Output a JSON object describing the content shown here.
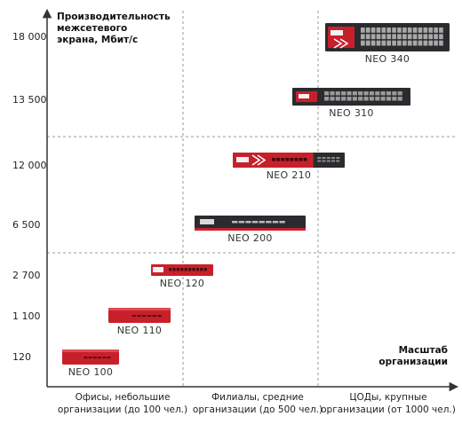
{
  "chart_data": {
    "type": "scatter",
    "ylabel": "Производительность межсетевого экрана,  Мбит/с",
    "xlabel": "Масштаб организации",
    "y_ticks": [
      "18 000",
      "13 500",
      "12 000",
      "6 500",
      "2 700",
      "1 100",
      "120"
    ],
    "categories": [
      "Офисы, небольшие организации (до 100 чел.)",
      "Филиалы, средние организации (до 500 чел.)",
      "ЦОДы, крупные организации (от 1000 чел.)"
    ],
    "grid": true,
    "points": [
      {
        "name": "NEO 100",
        "category": "Офисы, небольшие организации (до 100 чел.)",
        "y": "120",
        "style": "red-desktop"
      },
      {
        "name": "NEO 110",
        "category": "Офисы, небольшие организации (до 100 чел.)",
        "y": "1 100",
        "style": "red-desktop"
      },
      {
        "name": "NEO 120",
        "category": "Офисы, небольшие организации (до 100 чел.)",
        "y": "2 700",
        "style": "red-rack"
      },
      {
        "name": "NEO 200",
        "category": "Филиалы, средние организации (до 500 чел.)",
        "y": "6 500",
        "style": "dark-rack"
      },
      {
        "name": "NEO 210",
        "category": "Филиалы, средние организации (до 500 чел.)",
        "y": "12 000",
        "style": "red-dark-rack"
      },
      {
        "name": "NEO 310",
        "category": "ЦОДы, крупные организации (от 1000 чел.)",
        "y": "13 500",
        "style": "dark-rack-ports"
      },
      {
        "name": "NEO 340",
        "category": "ЦОДы, крупные организации (от 1000 чел.)",
        "y": "18 000",
        "style": "dark-rack-big"
      }
    ],
    "colors": {
      "red": "#c8202a",
      "dark": "#2b2b2f",
      "axis": "#333333",
      "grid": "#9a9a9a"
    }
  }
}
